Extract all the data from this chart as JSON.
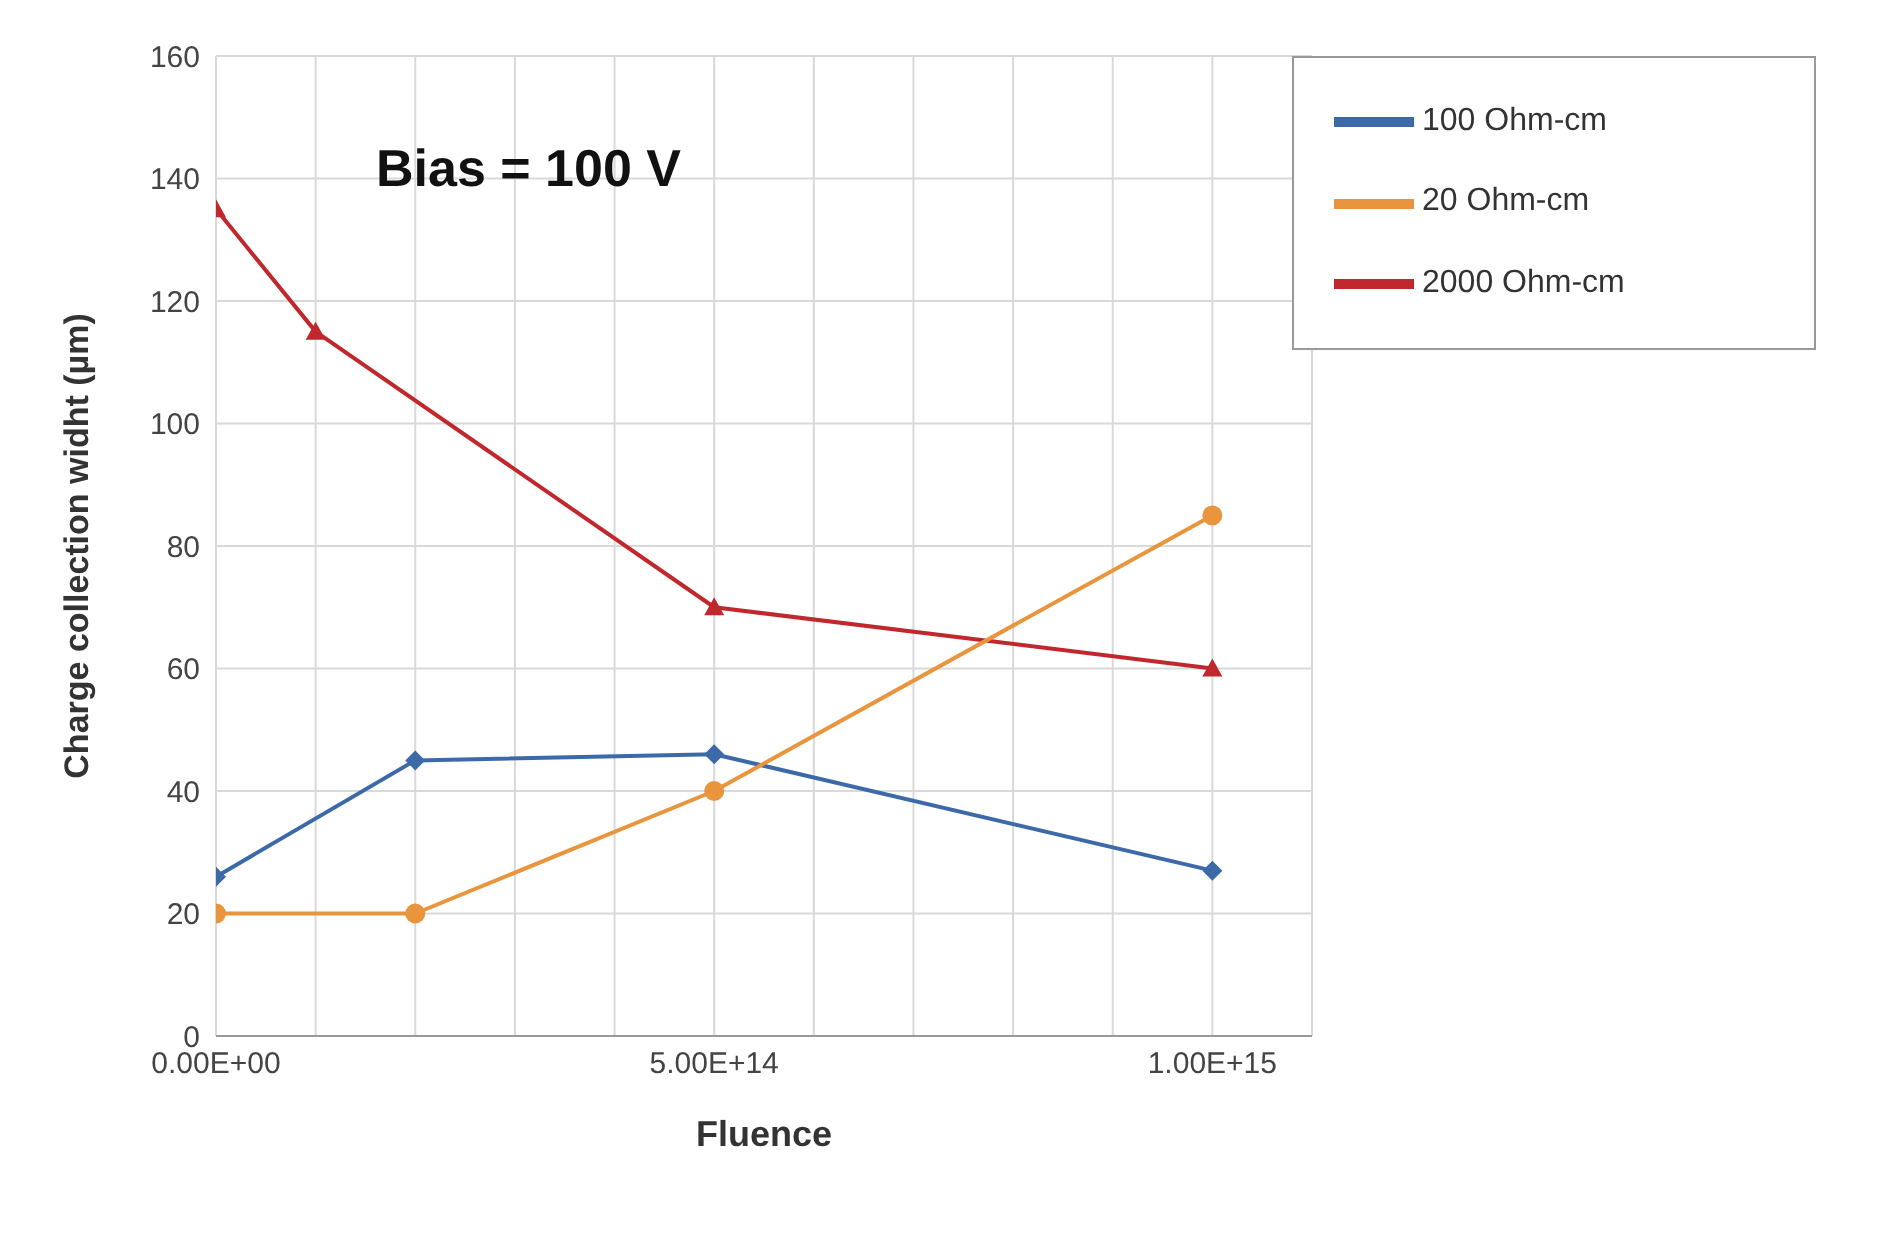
{
  "chart_data": {
    "type": "line",
    "xlabel": "Fluence",
    "ylabel": "Charge collection widht (µm)",
    "annotations": [
      "Bias = 100 V"
    ],
    "xlim": [
      0,
      1100000000000000.0
    ],
    "xticks": [
      {
        "value": 0,
        "label": "0.00E+00"
      },
      {
        "value": 100000000000000.0,
        "label": null
      },
      {
        "value": 200000000000000.0,
        "label": null
      },
      {
        "value": 300000000000000.0,
        "label": null
      },
      {
        "value": 400000000000000.0,
        "label": null
      },
      {
        "value": 500000000000000.0,
        "label": "5.00E+14"
      },
      {
        "value": 600000000000000.0,
        "label": null
      },
      {
        "value": 700000000000000.0,
        "label": null
      },
      {
        "value": 800000000000000.0,
        "label": null
      },
      {
        "value": 900000000000000.0,
        "label": null
      },
      {
        "value": 1000000000000000.0,
        "label": "1.00E+15"
      },
      {
        "value": 1100000000000000.0,
        "label": null
      }
    ],
    "ylim": [
      0,
      160
    ],
    "yticks": [
      0,
      20,
      40,
      60,
      80,
      100,
      120,
      140,
      160
    ],
    "grid": true,
    "legend": "top right",
    "series": [
      {
        "name": "2000 Ohm-cm",
        "color": "#c0282d",
        "marker": "triangle",
        "x": [
          0,
          100000000000000.0,
          500000000000000.0,
          1000000000000000.0
        ],
        "values": [
          135,
          115,
          70,
          60
        ]
      },
      {
        "name": "100 Ohm-cm",
        "color": "#3c6aa8",
        "marker": "diamond",
        "x": [
          0,
          200000000000000.0,
          500000000000000.0,
          1000000000000000.0
        ],
        "values": [
          26,
          45,
          46,
          27
        ]
      },
      {
        "name": "20 Ohm-cm",
        "color": "#e8953e",
        "marker": "circle",
        "x": [
          0,
          200000000000000.0,
          500000000000000.0,
          1000000000000000.0
        ],
        "values": [
          20,
          20,
          40,
          85
        ]
      }
    ]
  }
}
